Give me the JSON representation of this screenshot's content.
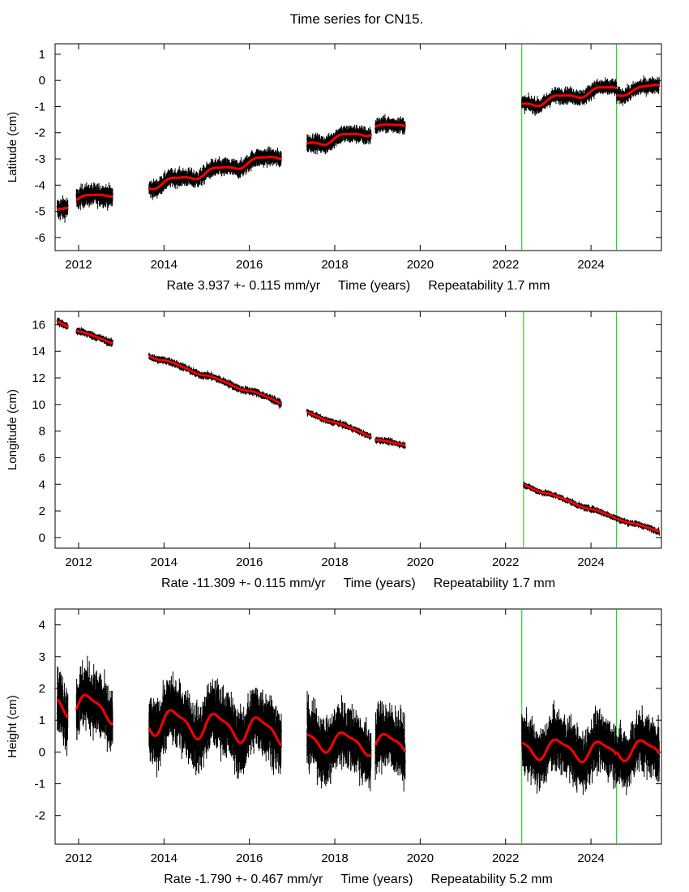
{
  "page": {
    "title": "Time series for CN15."
  },
  "colors": {
    "data": "#000000",
    "model": "#ff0000",
    "marker": "#00cc00",
    "axis": "#000000"
  },
  "chart_data": [
    {
      "type": "scatter",
      "component": "latitude",
      "ylabel": "Latitude (cm)",
      "xlabel": "Time (years)",
      "rate_text": "Rate 3.937 +- 0.115 mm/yr",
      "repeatability_text": "Repeatability 1.7 mm",
      "xlim": [
        2011.45,
        2025.65
      ],
      "ylim": [
        -6.5,
        1.4
      ],
      "x_ticks": [
        2012,
        2014,
        2016,
        2018,
        2020,
        2022,
        2024
      ],
      "y_ticks": [
        1,
        0,
        -1,
        -2,
        -3,
        -4,
        -5,
        -6
      ],
      "event_lines": [
        2022.38,
        2024.6
      ],
      "segments": [
        {
          "start": 2011.5,
          "end": 2011.75,
          "trend": [
            [
              2011.5,
              -4.95
            ],
            [
              2011.75,
              -4.8
            ]
          ],
          "amp": 0.05,
          "scatter": 0.25
        },
        {
          "start": 2011.95,
          "end": 2012.8,
          "trend": [
            [
              2011.95,
              -4.55
            ],
            [
              2012.8,
              -4.3
            ]
          ],
          "amp": 0.1,
          "scatter": 0.25
        },
        {
          "start": 2013.65,
          "end": 2016.75,
          "trend": [
            [
              2013.65,
              -4.05
            ],
            [
              2016.75,
              -2.85
            ]
          ],
          "amp": 0.12,
          "scatter": 0.2
        },
        {
          "start": 2017.35,
          "end": 2018.85,
          "trend": [
            [
              2017.35,
              -2.45
            ],
            [
              2018.85,
              -1.95
            ]
          ],
          "amp": 0.12,
          "scatter": 0.2
        },
        {
          "start": 2018.95,
          "end": 2019.65,
          "trend": [
            [
              2018.95,
              -1.75
            ],
            [
              2019.65,
              -1.7
            ]
          ],
          "amp": 0.05,
          "scatter": 0.18
        },
        {
          "start": 2022.38,
          "end": 2024.6,
          "trend": [
            [
              2022.38,
              -0.95
            ],
            [
              2024.6,
              -0.25
            ]
          ],
          "amp": 0.12,
          "scatter": 0.18
        },
        {
          "start": 2024.6,
          "end": 2025.6,
          "trend": [
            [
              2024.6,
              -0.55
            ],
            [
              2025.6,
              -0.15
            ]
          ],
          "amp": 0.08,
          "scatter": 0.18
        }
      ]
    },
    {
      "type": "scatter",
      "component": "longitude",
      "ylabel": "Longitude (cm)",
      "xlabel": "Time (years)",
      "rate_text": "Rate -11.309 +- 0.115 mm/yr",
      "repeatability_text": "Repeatability 1.7 mm",
      "xlim": [
        2011.45,
        2025.65
      ],
      "ylim": [
        -0.8,
        17.0
      ],
      "x_ticks": [
        2012,
        2014,
        2016,
        2018,
        2020,
        2022,
        2024
      ],
      "y_ticks": [
        16,
        14,
        12,
        10,
        8,
        6,
        4,
        2,
        0
      ],
      "event_lines": [
        2022.42,
        2024.6
      ],
      "segments": [
        {
          "start": 2011.5,
          "end": 2011.75,
          "trend": [
            [
              2011.5,
              16.25
            ],
            [
              2011.75,
              15.9
            ]
          ],
          "amp": 0.05,
          "scatter": 0.18
        },
        {
          "start": 2011.95,
          "end": 2012.8,
          "trend": [
            [
              2011.95,
              15.55
            ],
            [
              2012.8,
              14.65
            ]
          ],
          "amp": 0.05,
          "scatter": 0.18
        },
        {
          "start": 2013.65,
          "end": 2016.75,
          "trend": [
            [
              2013.65,
              13.7
            ],
            [
              2016.75,
              10.15
            ]
          ],
          "amp": 0.08,
          "scatter": 0.18
        },
        {
          "start": 2017.35,
          "end": 2018.85,
          "trend": [
            [
              2017.35,
              9.4
            ],
            [
              2018.85,
              7.65
            ]
          ],
          "amp": 0.06,
          "scatter": 0.15
        },
        {
          "start": 2018.95,
          "end": 2019.65,
          "trend": [
            [
              2018.95,
              7.35
            ],
            [
              2019.65,
              6.95
            ]
          ],
          "amp": 0.05,
          "scatter": 0.15
        },
        {
          "start": 2022.42,
          "end": 2024.6,
          "trend": [
            [
              2022.42,
              3.95
            ],
            [
              2024.6,
              1.45
            ]
          ],
          "amp": 0.06,
          "scatter": 0.15
        },
        {
          "start": 2024.6,
          "end": 2025.6,
          "trend": [
            [
              2024.6,
              1.45
            ],
            [
              2025.6,
              0.45
            ]
          ],
          "amp": 0.05,
          "scatter": 0.15
        }
      ]
    },
    {
      "type": "scatter",
      "component": "height",
      "ylabel": "Height (cm)",
      "xlabel": "Time (years)",
      "rate_text": "Rate -1.790 +- 0.467 mm/yr",
      "repeatability_text": "Repeatability 5.2 mm",
      "xlim": [
        2011.45,
        2025.65
      ],
      "ylim": [
        -2.9,
        4.5
      ],
      "x_ticks": [
        2012,
        2014,
        2016,
        2018,
        2020,
        2022,
        2024
      ],
      "y_ticks": [
        4,
        3,
        2,
        1,
        0,
        -1,
        -2
      ],
      "event_lines": [
        2022.38,
        2024.6
      ],
      "segments": [
        {
          "start": 2011.5,
          "end": 2011.75,
          "trend": [
            [
              2011.5,
              1.6
            ],
            [
              2011.75,
              1.5
            ]
          ],
          "amp": 0.35,
          "scatter": 0.6
        },
        {
          "start": 2011.95,
          "end": 2012.8,
          "trend": [
            [
              2011.95,
              1.45
            ],
            [
              2012.8,
              1.35
            ]
          ],
          "amp": 0.38,
          "scatter": 0.6
        },
        {
          "start": 2013.65,
          "end": 2016.75,
          "trend": [
            [
              2013.65,
              1.0
            ],
            [
              2016.75,
              0.65
            ]
          ],
          "amp": 0.38,
          "scatter": 0.6
        },
        {
          "start": 2017.35,
          "end": 2018.85,
          "trend": [
            [
              2017.35,
              0.4
            ],
            [
              2018.85,
              0.25
            ]
          ],
          "amp": 0.3,
          "scatter": 0.6
        },
        {
          "start": 2018.95,
          "end": 2019.65,
          "trend": [
            [
              2018.95,
              0.3
            ],
            [
              2019.65,
              0.2
            ]
          ],
          "amp": 0.3,
          "scatter": 0.6
        },
        {
          "start": 2022.38,
          "end": 2024.6,
          "trend": [
            [
              2022.38,
              0.15
            ],
            [
              2024.6,
              0.0
            ]
          ],
          "amp": 0.3,
          "scatter": 0.55
        },
        {
          "start": 2024.6,
          "end": 2025.6,
          "trend": [
            [
              2024.6,
              0.1
            ],
            [
              2025.6,
              0.05
            ]
          ],
          "amp": 0.3,
          "scatter": 0.55
        }
      ]
    }
  ]
}
